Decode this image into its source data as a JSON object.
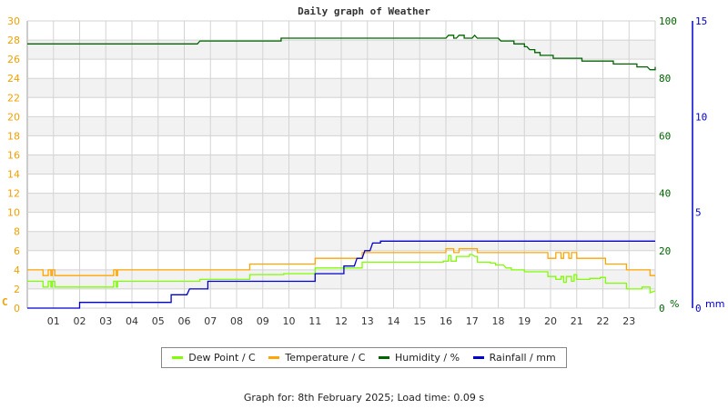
{
  "title": "Daily graph of Weather",
  "footer": "Graph for: 8th February 2025; Load time: 0.09 s",
  "colors": {
    "dew_point": "#7fff00",
    "temperature": "#ffa500",
    "humidity": "#006400",
    "rainfall": "#0000cd",
    "grid": "#d3d3d3",
    "band": "#f2f2f2",
    "left_axis": "#f0a000",
    "humidity_axis": "#006400",
    "rain_axis": "#0000cd"
  },
  "legend": [
    {
      "label": "Dew Point / C",
      "color": "#7fff00"
    },
    {
      "label": "Temperature / C",
      "color": "#ffa500"
    },
    {
      "label": "Humidity / %",
      "color": "#006400"
    },
    {
      "label": "Rainfall / mm",
      "color": "#0000cd"
    }
  ],
  "chart_data": {
    "type": "line",
    "title": "Daily graph of Weather",
    "xlabel": "",
    "x_ticks": [
      "01",
      "02",
      "03",
      "04",
      "05",
      "06",
      "07",
      "08",
      "09",
      "10",
      "11",
      "12",
      "13",
      "14",
      "15",
      "16",
      "17",
      "18",
      "19",
      "20",
      "21",
      "22",
      "23"
    ],
    "xlim": [
      0,
      24
    ],
    "axes": {
      "left": {
        "label": "C",
        "ylim": [
          0,
          30
        ],
        "ticks": [
          0,
          2,
          4,
          6,
          8,
          10,
          12,
          14,
          16,
          18,
          20,
          22,
          24,
          26,
          28,
          30
        ]
      },
      "right_humidity": {
        "label": "%",
        "ylim": [
          0,
          100
        ],
        "ticks": [
          0,
          20,
          40,
          60,
          80,
          100
        ]
      },
      "right_rainfall": {
        "label": "mm",
        "ylim": [
          0,
          15
        ],
        "ticks": [
          0,
          5,
          10,
          15
        ]
      }
    },
    "grid": true,
    "legend_position": "bottom",
    "series": [
      {
        "name": "Temperature / C",
        "axis": "left",
        "points": [
          [
            0,
            4.0
          ],
          [
            0.6,
            4.0
          ],
          [
            0.6,
            3.4
          ],
          [
            0.8,
            3.4
          ],
          [
            0.8,
            4.0
          ],
          [
            0.9,
            4.0
          ],
          [
            0.9,
            3.4
          ],
          [
            0.95,
            3.4
          ],
          [
            0.95,
            4.0
          ],
          [
            1.05,
            4.0
          ],
          [
            1.05,
            3.4
          ],
          [
            3.3,
            3.4
          ],
          [
            3.3,
            4.0
          ],
          [
            3.4,
            4.0
          ],
          [
            3.4,
            3.4
          ],
          [
            3.45,
            3.4
          ],
          [
            3.45,
            4.0
          ],
          [
            8.5,
            4.0
          ],
          [
            8.5,
            4.6
          ],
          [
            11.0,
            4.6
          ],
          [
            11.0,
            5.2
          ],
          [
            12.8,
            5.2
          ],
          [
            12.8,
            5.8
          ],
          [
            16.0,
            5.8
          ],
          [
            16.0,
            6.2
          ],
          [
            16.3,
            6.2
          ],
          [
            16.3,
            5.8
          ],
          [
            16.5,
            5.8
          ],
          [
            16.5,
            6.2
          ],
          [
            17.2,
            6.2
          ],
          [
            17.2,
            5.8
          ],
          [
            19.9,
            5.8
          ],
          [
            19.9,
            5.2
          ],
          [
            20.2,
            5.2
          ],
          [
            20.2,
            5.8
          ],
          [
            20.4,
            5.8
          ],
          [
            20.4,
            5.2
          ],
          [
            20.5,
            5.2
          ],
          [
            20.5,
            5.8
          ],
          [
            20.7,
            5.8
          ],
          [
            20.7,
            5.2
          ],
          [
            20.8,
            5.2
          ],
          [
            20.8,
            5.8
          ],
          [
            21.0,
            5.8
          ],
          [
            21.0,
            5.2
          ],
          [
            22.1,
            5.2
          ],
          [
            22.1,
            4.6
          ],
          [
            22.9,
            4.6
          ],
          [
            22.9,
            4.0
          ],
          [
            23.8,
            4.0
          ],
          [
            23.8,
            3.4
          ],
          [
            24,
            3.4
          ]
        ]
      },
      {
        "name": "Dew Point / C",
        "axis": "left",
        "points": [
          [
            0,
            2.8
          ],
          [
            0.6,
            2.8
          ],
          [
            0.6,
            2.2
          ],
          [
            0.8,
            2.2
          ],
          [
            0.8,
            2.8
          ],
          [
            0.9,
            2.8
          ],
          [
            0.9,
            2.2
          ],
          [
            0.95,
            2.2
          ],
          [
            0.95,
            2.8
          ],
          [
            1.05,
            2.8
          ],
          [
            1.05,
            2.2
          ],
          [
            3.3,
            2.2
          ],
          [
            3.3,
            2.8
          ],
          [
            3.4,
            2.8
          ],
          [
            3.4,
            2.2
          ],
          [
            3.45,
            2.2
          ],
          [
            3.45,
            2.8
          ],
          [
            6.6,
            2.8
          ],
          [
            6.6,
            3.0
          ],
          [
            8.5,
            3.0
          ],
          [
            8.5,
            3.5
          ],
          [
            9.8,
            3.5
          ],
          [
            9.8,
            3.6
          ],
          [
            11.0,
            3.6
          ],
          [
            11.0,
            4.2
          ],
          [
            12.8,
            4.2
          ],
          [
            12.8,
            4.8
          ],
          [
            15.9,
            4.8
          ],
          [
            15.9,
            4.9
          ],
          [
            16.1,
            4.9
          ],
          [
            16.1,
            5.5
          ],
          [
            16.2,
            5.5
          ],
          [
            16.2,
            4.9
          ],
          [
            16.4,
            4.9
          ],
          [
            16.4,
            5.4
          ],
          [
            16.9,
            5.4
          ],
          [
            16.9,
            5.6
          ],
          [
            17.0,
            5.6
          ],
          [
            17.1,
            5.4
          ],
          [
            17.2,
            5.4
          ],
          [
            17.2,
            4.8
          ],
          [
            17.7,
            4.8
          ],
          [
            17.7,
            4.7
          ],
          [
            17.9,
            4.7
          ],
          [
            17.9,
            4.5
          ],
          [
            18.2,
            4.5
          ],
          [
            18.3,
            4.2
          ],
          [
            18.5,
            4.2
          ],
          [
            18.5,
            4.0
          ],
          [
            19.0,
            4.0
          ],
          [
            19.0,
            3.8
          ],
          [
            19.9,
            3.8
          ],
          [
            19.9,
            3.3
          ],
          [
            20.2,
            3.3
          ],
          [
            20.2,
            3.0
          ],
          [
            20.4,
            3.0
          ],
          [
            20.4,
            3.3
          ],
          [
            20.5,
            3.3
          ],
          [
            20.5,
            2.7
          ],
          [
            20.6,
            2.7
          ],
          [
            20.6,
            3.3
          ],
          [
            20.8,
            3.3
          ],
          [
            20.8,
            2.8
          ],
          [
            20.9,
            2.8
          ],
          [
            20.9,
            3.5
          ],
          [
            21.0,
            3.5
          ],
          [
            21.0,
            3.0
          ],
          [
            21.5,
            3.0
          ],
          [
            21.5,
            3.1
          ],
          [
            21.9,
            3.1
          ],
          [
            21.9,
            3.2
          ],
          [
            22.1,
            3.2
          ],
          [
            22.1,
            2.6
          ],
          [
            22.9,
            2.6
          ],
          [
            22.9,
            2.0
          ],
          [
            23.5,
            2.0
          ],
          [
            23.5,
            2.2
          ],
          [
            23.8,
            2.2
          ],
          [
            23.8,
            1.6
          ],
          [
            24,
            1.8
          ]
        ]
      },
      {
        "name": "Humidity / %",
        "axis": "right_humidity",
        "points": [
          [
            0,
            92
          ],
          [
            6.5,
            92
          ],
          [
            6.6,
            93
          ],
          [
            9.7,
            93
          ],
          [
            9.7,
            94
          ],
          [
            16.0,
            94
          ],
          [
            16.1,
            95
          ],
          [
            16.3,
            95
          ],
          [
            16.3,
            94
          ],
          [
            16.4,
            94
          ],
          [
            16.5,
            95
          ],
          [
            16.7,
            95
          ],
          [
            16.7,
            94
          ],
          [
            17.0,
            94
          ],
          [
            17.1,
            95
          ],
          [
            17.2,
            94
          ],
          [
            18.0,
            94
          ],
          [
            18.1,
            93
          ],
          [
            18.6,
            93
          ],
          [
            18.6,
            92
          ],
          [
            19.0,
            92
          ],
          [
            19.0,
            91
          ],
          [
            19.1,
            91
          ],
          [
            19.2,
            90
          ],
          [
            19.4,
            90
          ],
          [
            19.4,
            89
          ],
          [
            19.6,
            89
          ],
          [
            19.6,
            88
          ],
          [
            20.1,
            88
          ],
          [
            20.1,
            87
          ],
          [
            21.2,
            87
          ],
          [
            21.2,
            86
          ],
          [
            22.4,
            86
          ],
          [
            22.4,
            85
          ],
          [
            23.3,
            85
          ],
          [
            23.3,
            84
          ],
          [
            23.7,
            84
          ],
          [
            23.8,
            83
          ],
          [
            24.0,
            83
          ],
          [
            24.0,
            84
          ]
        ]
      },
      {
        "name": "Rainfall / mm",
        "axis": "right_rainfall",
        "points": [
          [
            0,
            0
          ],
          [
            2.0,
            0
          ],
          [
            2.0,
            0.3
          ],
          [
            5.5,
            0.3
          ],
          [
            5.5,
            0.7
          ],
          [
            6.1,
            0.7
          ],
          [
            6.2,
            1.0
          ],
          [
            6.9,
            1.0
          ],
          [
            6.9,
            1.4
          ],
          [
            11.0,
            1.4
          ],
          [
            11.0,
            1.8
          ],
          [
            12.1,
            1.8
          ],
          [
            12.1,
            2.2
          ],
          [
            12.5,
            2.2
          ],
          [
            12.6,
            2.6
          ],
          [
            12.8,
            2.6
          ],
          [
            12.9,
            3.0
          ],
          [
            13.1,
            3.0
          ],
          [
            13.2,
            3.4
          ],
          [
            13.5,
            3.4
          ],
          [
            13.5,
            3.5
          ],
          [
            24,
            3.5
          ]
        ]
      }
    ]
  }
}
